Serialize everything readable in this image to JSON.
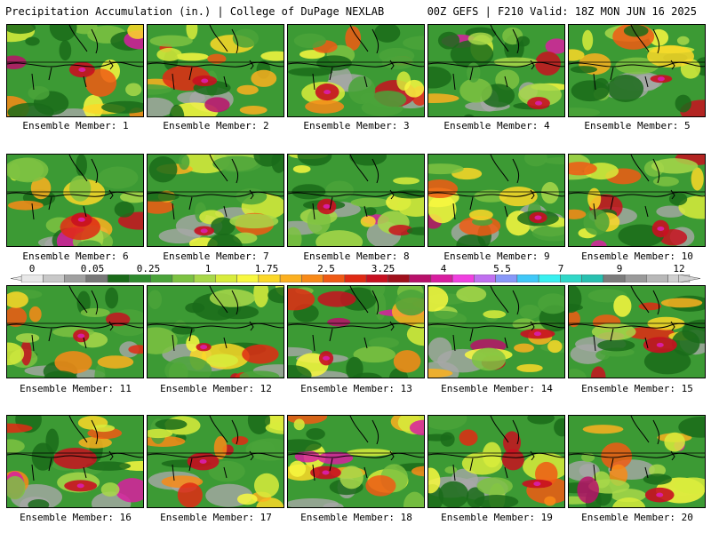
{
  "header": {
    "title": "Precipitation Accumulation (in.) | College of DuPage NEXLAB",
    "valid": "00Z GEFS | F210 Valid: 18Z MON JUN 16 2025"
  },
  "colorbar": {
    "tick_labels": [
      "0",
      "0.05",
      "0.25",
      "1",
      "1.75",
      "2.5",
      "3.25",
      "4",
      "5.5",
      "7",
      "9",
      "12"
    ],
    "colors": [
      "#e8e8e8",
      "#c8c8c8",
      "#a0a0a0",
      "#787878",
      "#1a6b1a",
      "#2e8b2e",
      "#4aa33a",
      "#7cc242",
      "#a8d84a",
      "#d8ec3c",
      "#f8f840",
      "#fcd828",
      "#fcb020",
      "#f88a18",
      "#f05a14",
      "#e02a14",
      "#c81020",
      "#a0101c",
      "#b8106a",
      "#d81ea0",
      "#f040e0",
      "#c070f0",
      "#8898f8",
      "#40c8f8",
      "#38f0f0",
      "#30d8c8",
      "#28c0b0",
      "#7c7c7c",
      "#9a9a9a",
      "#b8b8b8",
      "#d0d0d0"
    ]
  },
  "ensemble_members": [
    {
      "label": "Ensemble Member: 1"
    },
    {
      "label": "Ensemble Member: 2"
    },
    {
      "label": "Ensemble Member: 3"
    },
    {
      "label": "Ensemble Member: 4"
    },
    {
      "label": "Ensemble Member: 5"
    },
    {
      "label": "Ensemble Member: 6"
    },
    {
      "label": "Ensemble Member: 7"
    },
    {
      "label": "Ensemble Member: 8"
    },
    {
      "label": "Ensemble Member: 9"
    },
    {
      "label": "Ensemble Member: 10"
    },
    {
      "label": "Ensemble Member: 11"
    },
    {
      "label": "Ensemble Member: 12"
    },
    {
      "label": "Ensemble Member: 13"
    },
    {
      "label": "Ensemble Member: 14"
    },
    {
      "label": "Ensemble Member: 15"
    },
    {
      "label": "Ensemble Member: 16"
    },
    {
      "label": "Ensemble Member: 17"
    },
    {
      "label": "Ensemble Member: 18"
    },
    {
      "label": "Ensemble Member: 19"
    },
    {
      "label": "Ensemble Member: 20"
    }
  ]
}
